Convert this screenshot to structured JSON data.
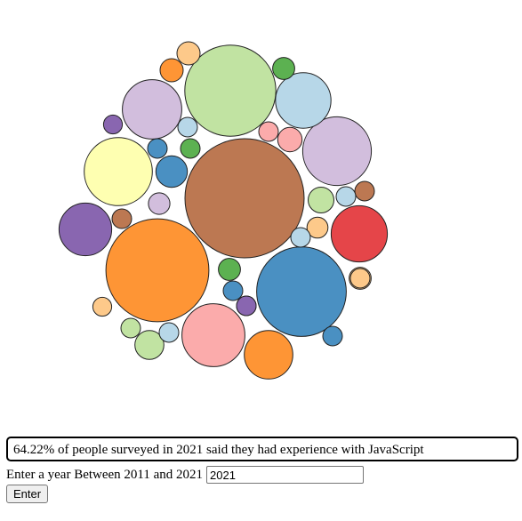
{
  "chart_data": {
    "type": "bubble",
    "year": 2021,
    "palette": {
      "orange": "#fe9535",
      "light_orange": "#fdc98a",
      "green": "#5cb151",
      "light_green": "#c1e3a2",
      "blue": "#4a90c2",
      "light_blue": "#b7d7e8",
      "purple": "#8966b0",
      "light_purple": "#d2bedd",
      "red": "#e54549",
      "pink": "#fbabab",
      "brown": "#bc7852",
      "yellow": "#feffb1"
    },
    "bubbles": [
      {
        "value": 64.22,
        "color": "brown"
      },
      {
        "value": 48.0,
        "color": "orange"
      },
      {
        "value": 37.5,
        "color": "light_green"
      },
      {
        "value": 36.3,
        "color": "blue"
      },
      {
        "value": 21.3,
        "color": "light_purple"
      },
      {
        "value": 21.0,
        "color": "yellow"
      },
      {
        "value": 17.9,
        "color": "pink"
      },
      {
        "value": 16.0,
        "color": "light_purple"
      },
      {
        "value": 13.9,
        "color": "light_blue"
      },
      {
        "value": 14.3,
        "color": "red"
      },
      {
        "value": 12.5,
        "color": "purple"
      },
      {
        "value": 10.7,
        "color": "orange"
      },
      {
        "value": 4.5,
        "color": "blue"
      },
      {
        "value": 3.8,
        "color": "light_green"
      },
      {
        "value": 3.0,
        "color": "light_green"
      },
      {
        "value": 2.4,
        "color": "light_orange"
      },
      {
        "value": 2.4,
        "color": "orange"
      },
      {
        "value": 2.7,
        "color": "pink"
      },
      {
        "value": 2.2,
        "color": "green"
      },
      {
        "value": 2.2,
        "color": "light_orange"
      },
      {
        "value": 2.2,
        "color": "green"
      },
      {
        "value": 2.1,
        "color": "light_purple"
      },
      {
        "value": 2.0,
        "color": "light_orange"
      },
      {
        "value": 1.6,
        "color": "light_orange"
      },
      {
        "value": 1.6,
        "color": "purple"
      },
      {
        "value": 1.4,
        "color": "green"
      },
      {
        "value": 1.4,
        "color": "purple"
      },
      {
        "value": 1.4,
        "color": "light_blue"
      },
      {
        "value": 1.4,
        "color": "brown"
      },
      {
        "value": 1.3,
        "color": "purple"
      },
      {
        "value": 1.2,
        "color": "light_blue"
      },
      {
        "value": 1.2,
        "color": "blue"
      },
      {
        "value": 1.2,
        "color": "light_green"
      },
      {
        "value": 1.2,
        "color": "light_orange"
      },
      {
        "value": 1.1,
        "color": "blue"
      },
      {
        "value": 1.1,
        "color": "blue"
      },
      {
        "value": 1.0,
        "color": "light_blue"
      },
      {
        "value": 1.0,
        "color": "brown"
      },
      {
        "value": 1.0,
        "color": "light_blue"
      },
      {
        "value": 0.9,
        "color": "pink"
      }
    ]
  },
  "info": {
    "text": "64.22% of people surveyed in 2021 said they had experience with JavaScript"
  },
  "year_form": {
    "label": "Enter a year Between 2011 and 2021",
    "input_value": "2021",
    "button_label": "Enter"
  }
}
